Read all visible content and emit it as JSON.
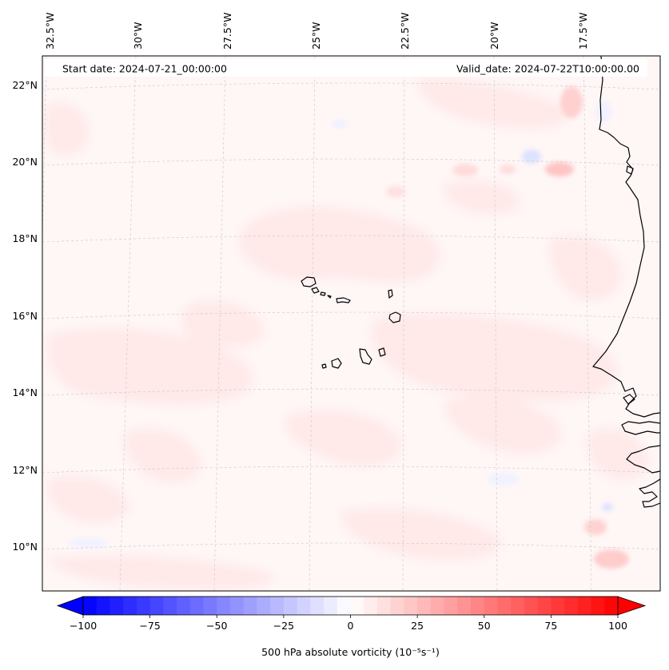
{
  "map": {
    "start_date": "Start date: 2024-07-21_00:00:00",
    "valid_date": "Valid_date: 2024-07-22T10:00:00.00",
    "lon_labels": [
      "32.5°W",
      "30°W",
      "27.5°W",
      "25°W",
      "22.5°W",
      "20°W",
      "17.5°W"
    ],
    "lat_labels": [
      "22°N",
      "20°N",
      "18°N",
      "16°N",
      "14°N",
      "12°N",
      "10°N"
    ],
    "colors": {
      "background": "#fff6f6",
      "positive_light": "#ffe9e9",
      "positive_mid": "#ffdcdc",
      "positive_strong": "#ffc8c8",
      "negative_light": "#f0f2ff",
      "negative_mid": "#dde2ff",
      "coastline": "#000000",
      "gridline": "#c8c8c8"
    }
  },
  "colorbar": {
    "label": "500 hPa absolute vorticity (10⁻⁵s⁻¹)",
    "min": -100,
    "max": 100,
    "step": 5,
    "ticks": [
      -100,
      -75,
      -50,
      -25,
      0,
      25,
      50,
      75,
      100
    ],
    "tick_labels": [
      "−100",
      "−75",
      "−50",
      "−25",
      "0",
      "25",
      "50",
      "75",
      "100"
    ]
  }
}
